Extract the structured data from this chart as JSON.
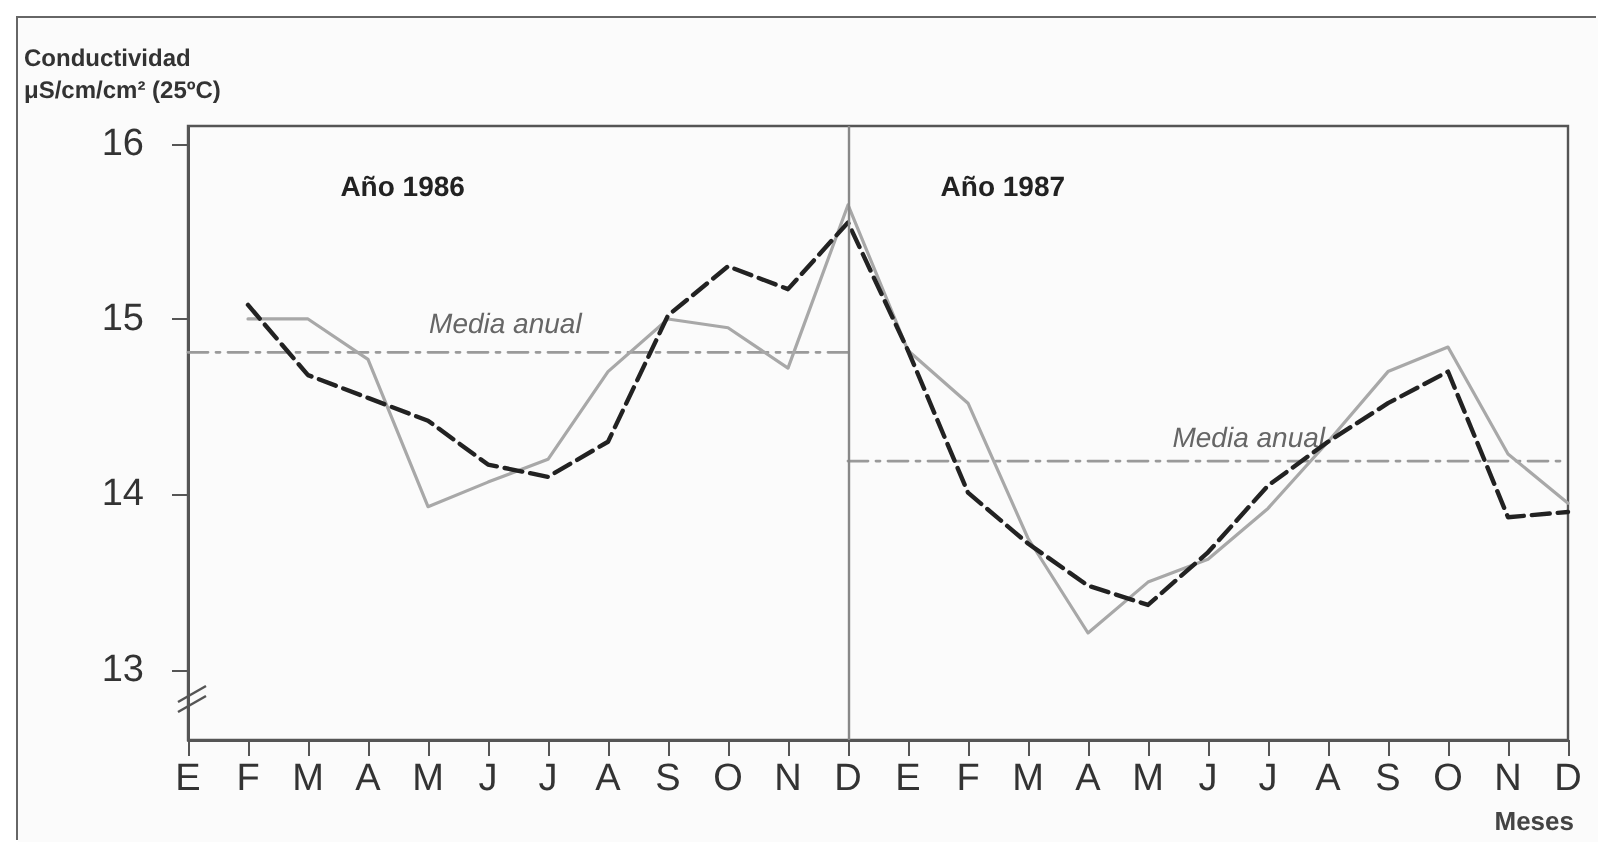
{
  "chart_data": {
    "type": "line",
    "ylabel": "Conductividad\nμS/cm/cm² (25ºC)",
    "xlabel": "Meses",
    "categories": [
      "E",
      "F",
      "M",
      "A",
      "M",
      "J",
      "J",
      "A",
      "S",
      "O",
      "N",
      "D",
      "E",
      "F",
      "M",
      "A",
      "M",
      "J",
      "J",
      "A",
      "S",
      "O",
      "N",
      "D"
    ],
    "ylim": [
      12.6,
      16.1
    ],
    "yticks": [
      13,
      14,
      15,
      16
    ],
    "series": [
      {
        "color": "#a8a8a8",
        "line_style": "solid",
        "values": [
          null,
          15.0,
          15.0,
          14.77,
          13.93,
          14.07,
          14.2,
          14.7,
          15.0,
          14.95,
          14.72,
          15.65,
          14.82,
          14.52,
          13.75,
          13.21,
          13.5,
          13.63,
          13.92,
          14.3,
          14.7,
          14.84,
          14.23,
          13.95
        ]
      },
      {
        "color": "#222222",
        "line_style": "dashed",
        "values": [
          null,
          15.08,
          14.68,
          14.55,
          14.42,
          14.17,
          14.1,
          14.3,
          15.02,
          15.3,
          15.17,
          15.55,
          14.82,
          14.01,
          13.72,
          13.48,
          13.37,
          13.67,
          14.05,
          14.3,
          14.52,
          14.7,
          13.87,
          13.9
        ]
      },
      {
        "color": "#9a9a9a",
        "line_style": "dashed",
        "values": [
          14.81,
          14.81,
          14.81,
          14.81,
          14.81,
          14.81,
          14.81,
          14.81,
          14.81,
          14.81,
          14.81,
          14.81,
          null,
          null,
          null,
          null,
          null,
          null,
          null,
          null,
          null,
          null,
          null,
          null
        ]
      },
      {
        "color": "#9a9a9a",
        "line_style": "dashed",
        "values": [
          null,
          null,
          null,
          null,
          null,
          null,
          null,
          null,
          null,
          null,
          null,
          14.19,
          14.19,
          14.19,
          14.19,
          14.19,
          14.19,
          14.19,
          14.19,
          14.19,
          14.19,
          14.19,
          14.19,
          14.19
        ]
      }
    ],
    "ref_lines": [
      {
        "axis": "x",
        "value": "D",
        "color": "#888888",
        "line_style": "solid"
      }
    ],
    "annotations": [
      "Año 1986",
      "Año 1987",
      "Media anual",
      "Media anual"
    ],
    "grid": false,
    "marker": "none"
  }
}
